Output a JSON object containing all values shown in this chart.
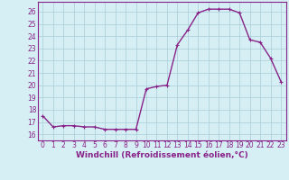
{
  "x": [
    0,
    1,
    2,
    3,
    4,
    5,
    6,
    7,
    8,
    9,
    10,
    11,
    12,
    13,
    14,
    15,
    16,
    17,
    18,
    19,
    20,
    21,
    22,
    23
  ],
  "y": [
    17.5,
    16.6,
    16.7,
    16.7,
    16.6,
    16.6,
    16.4,
    16.4,
    16.4,
    16.4,
    19.7,
    19.9,
    20.0,
    23.3,
    24.5,
    25.9,
    26.2,
    26.2,
    26.2,
    25.9,
    23.7,
    23.5,
    22.2,
    20.3
  ],
  "line_color": "#882288",
  "marker": "+",
  "marker_size": 3,
  "linewidth": 1.0,
  "xlabel": "Windchill (Refroidissement éolien,°C)",
  "xlabel_fontsize": 6.5,
  "ylabel_ticks": [
    16,
    17,
    18,
    19,
    20,
    21,
    22,
    23,
    24,
    25,
    26
  ],
  "xtick_labels": [
    "0",
    "1",
    "2",
    "3",
    "4",
    "5",
    "6",
    "7",
    "8",
    "9",
    "10",
    "11",
    "12",
    "13",
    "14",
    "15",
    "16",
    "17",
    "18",
    "19",
    "20",
    "21",
    "22",
    "23"
  ],
  "ylim": [
    15.5,
    26.8
  ],
  "xlim": [
    -0.5,
    23.5
  ],
  "bg_color": "#d6eff5",
  "grid_color": "#aacdd8",
  "tick_fontsize": 5.5,
  "spine_color": "#882288"
}
